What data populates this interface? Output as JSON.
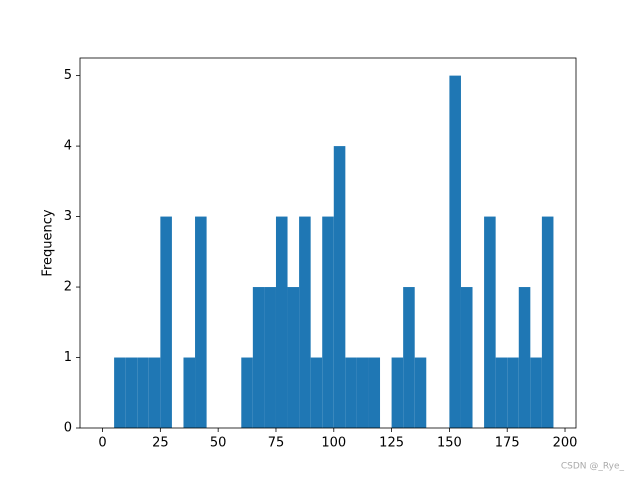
{
  "chart_data": {
    "type": "histogram",
    "y_label": "Frequency",
    "bins": [
      0,
      5,
      10,
      15,
      20,
      25,
      30,
      35,
      40,
      45,
      50,
      55,
      60,
      65,
      70,
      75,
      80,
      85,
      90,
      95,
      100,
      105,
      110,
      115,
      120,
      125,
      130,
      135,
      140,
      145,
      150,
      155,
      160,
      165,
      170,
      175,
      180,
      185,
      190,
      195
    ],
    "values": [
      0,
      1,
      1,
      1,
      1,
      3,
      0,
      1,
      3,
      0,
      0,
      0,
      1,
      2,
      2,
      3,
      2,
      3,
      1,
      3,
      4,
      1,
      1,
      1,
      0,
      1,
      2,
      1,
      0,
      0,
      5,
      2,
      0,
      3,
      1,
      1,
      2,
      1,
      3
    ],
    "color": "#1f77b4",
    "xlim": [
      -9.75,
      204.75
    ],
    "xticks": [
      0,
      25,
      50,
      75,
      100,
      125,
      150,
      175,
      200
    ],
    "ylim": [
      0,
      5.25
    ],
    "yticks": [
      0,
      1,
      2,
      3,
      4,
      5
    ],
    "watermark": "CSDN @_Rye_"
  }
}
